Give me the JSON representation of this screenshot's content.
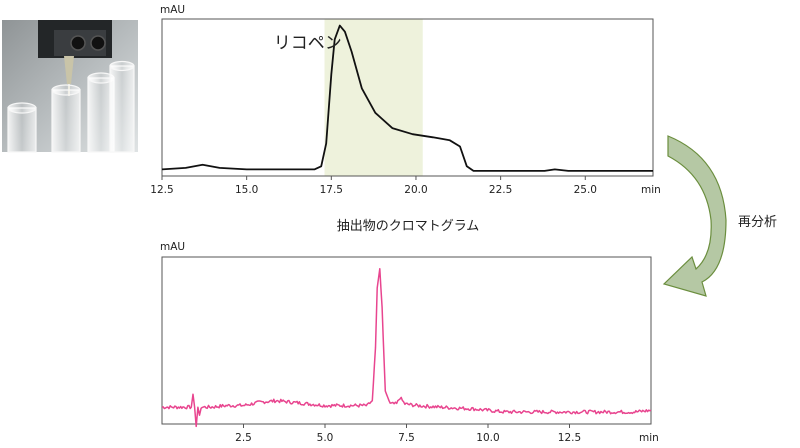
{
  "photo": {
    "icon": "autosampler-vials-photo"
  },
  "arrow": {
    "label": "再分析",
    "fill": "#b5c8a4",
    "stroke": "#6b8e3e"
  },
  "chart_data": [
    {
      "type": "line",
      "title": "抽出物のクロマトグラム",
      "ylabel": "mAU",
      "xlabel": "min",
      "xlim": [
        12.5,
        27.0
      ],
      "ylim": [
        0,
        100
      ],
      "xticks": [
        12.5,
        15.0,
        17.5,
        20.0,
        22.5,
        25.0
      ],
      "color": "#111111",
      "highlight": {
        "x_start": 17.3,
        "x_end": 20.2,
        "color": "#eef2dc"
      },
      "annotation": {
        "text": "リコペン",
        "x": 15.8,
        "y": 82
      },
      "series": [
        {
          "x": [
            12.5,
            13.2,
            13.7,
            14.2,
            15.0,
            16.0,
            17.0,
            17.2,
            17.35,
            17.5,
            17.6,
            17.75,
            17.9,
            18.1,
            18.4,
            18.8,
            19.3,
            19.9,
            20.5,
            21.0,
            21.3,
            21.5,
            21.7,
            22.0,
            23.0,
            23.8,
            24.1,
            24.5,
            25.5,
            26.5,
            27.0
          ],
          "y": [
            3,
            4,
            6,
            4,
            3,
            3,
            3,
            5,
            20,
            65,
            88,
            97,
            93,
            80,
            56,
            40,
            30,
            26,
            24,
            22,
            18,
            5,
            2,
            2,
            2,
            2,
            3,
            2,
            2,
            2,
            2
          ]
        }
      ]
    },
    {
      "type": "line",
      "ylabel": "mAU",
      "xlabel": "min",
      "xlim": [
        0,
        15.0
      ],
      "ylim": [
        0,
        100
      ],
      "xticks": [
        2.5,
        5.0,
        7.5,
        10.0,
        12.5
      ],
      "color": "#e8458f",
      "series": [
        {
          "x": [
            0,
            0.5,
            0.9,
            0.95,
            1.0,
            1.05,
            1.1,
            1.15,
            1.2,
            1.5,
            2.0,
            2.5,
            3.0,
            3.5,
            4.0,
            4.5,
            5.0,
            5.5,
            6.0,
            6.3,
            6.45,
            6.55,
            6.6,
            6.68,
            6.75,
            6.85,
            7.0,
            7.2,
            7.3,
            7.45,
            7.8,
            8.5,
            9.5,
            10.5,
            11.5,
            12.5,
            13.5,
            14.5,
            15.0
          ],
          "y": [
            8,
            8,
            8,
            16,
            8,
            -4,
            8,
            2,
            8,
            8,
            9,
            9,
            11,
            12,
            11,
            10,
            9,
            9,
            9,
            9,
            12,
            45,
            82,
            94,
            70,
            18,
            10,
            10,
            14,
            10,
            9,
            8,
            7,
            5,
            5,
            5,
            5,
            5,
            6
          ]
        }
      ]
    }
  ]
}
